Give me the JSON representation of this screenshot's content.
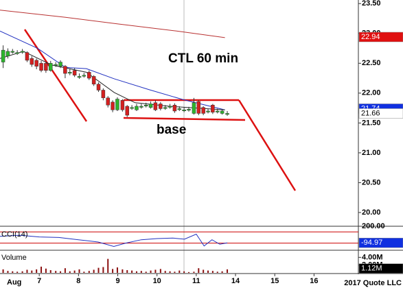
{
  "chart_data": [
    {
      "type": "candlestick",
      "title": "CTL 60 min",
      "annotation": "base",
      "xlim": [
        0,
        9.13
      ],
      "ylim": [
        19.77,
        23.56
      ],
      "yticks": [
        {
          "value": 23.5,
          "label": "23.50"
        },
        {
          "value": 23,
          "label": "23.00"
        },
        {
          "value": 22.5,
          "label": "22.50"
        },
        {
          "value": 22,
          "label": "22.00"
        },
        {
          "value": 21.5,
          "label": "21.50"
        },
        {
          "value": 21,
          "label": "21.00"
        },
        {
          "value": 20.5,
          "label": "20.50"
        },
        {
          "value": 20,
          "label": "20.00"
        }
      ],
      "up_color": "#2db52d",
      "down_color": "#d42020",
      "x": [
        0.08,
        0.2,
        0.32,
        0.44,
        0.57,
        0.69,
        0.81,
        0.93,
        1.05,
        1.17,
        1.29,
        1.42,
        1.54,
        1.66,
        1.78,
        1.9,
        2.02,
        2.14,
        2.27,
        2.39,
        2.51,
        2.63,
        2.75,
        2.87,
        2.99,
        3.12,
        3.24,
        3.36,
        3.48,
        3.6,
        3.72,
        3.84,
        3.96,
        4.09,
        4.21,
        4.33,
        4.45,
        4.57,
        4.69,
        4.81,
        4.94,
        5.06,
        5.18,
        5.3,
        5.42,
        5.54,
        5.66,
        5.79
      ],
      "open": [
        22.52,
        22.62,
        22.69,
        22.68,
        22.7,
        22.68,
        22.58,
        22.55,
        22.5,
        22.5,
        22.38,
        22.48,
        22.45,
        22.45,
        22.35,
        22.38,
        22.28,
        22.3,
        22.35,
        22.28,
        22.15,
        22.05,
        21.92,
        21.85,
        21.72,
        21.88,
        21.78,
        21.76,
        21.72,
        21.78,
        21.8,
        21.76,
        21.84,
        21.82,
        21.76,
        21.78,
        21.8,
        21.74,
        21.72,
        21.73,
        21.66,
        21.86,
        21.76,
        21.7,
        21.8,
        21.7,
        21.66,
        21.66
      ],
      "high": [
        22.8,
        22.75,
        22.74,
        22.72,
        22.74,
        22.7,
        22.62,
        22.58,
        22.54,
        22.52,
        22.54,
        22.52,
        22.55,
        22.47,
        22.4,
        22.42,
        22.33,
        22.34,
        22.38,
        22.3,
        22.18,
        22.08,
        21.95,
        21.88,
        21.93,
        21.9,
        21.8,
        21.8,
        21.82,
        21.82,
        21.84,
        21.86,
        21.88,
        21.85,
        21.8,
        21.82,
        21.83,
        21.78,
        21.76,
        21.77,
        21.92,
        21.88,
        21.78,
        21.74,
        21.82,
        21.74,
        21.73,
        21.7
      ],
      "low": [
        22.42,
        22.58,
        22.66,
        22.64,
        22.66,
        22.52,
        22.44,
        22.4,
        22.35,
        22.34,
        22.36,
        22.44,
        22.42,
        22.25,
        22.3,
        22.27,
        22.24,
        22.26,
        22.22,
        22.12,
        22.02,
        21.88,
        21.76,
        21.68,
        21.7,
        21.69,
        21.6,
        21.72,
        21.7,
        21.74,
        21.76,
        21.74,
        21.7,
        21.71,
        21.72,
        21.74,
        21.67,
        21.7,
        21.68,
        21.69,
        21.64,
        21.63,
        21.63,
        21.66,
        21.65,
        21.66,
        21.64,
        21.62
      ],
      "close": [
        22.72,
        22.7,
        22.7,
        22.68,
        22.7,
        22.55,
        22.48,
        22.45,
        22.38,
        22.38,
        22.5,
        22.48,
        22.52,
        22.33,
        22.35,
        22.3,
        22.28,
        22.3,
        22.25,
        22.15,
        22.05,
        21.92,
        21.8,
        21.72,
        21.9,
        21.72,
        21.63,
        21.76,
        21.78,
        21.78,
        21.8,
        21.82,
        21.72,
        21.74,
        21.76,
        21.78,
        21.7,
        21.74,
        21.72,
        21.73,
        21.84,
        21.66,
        21.66,
        21.7,
        21.68,
        21.7,
        21.7,
        21.66
      ],
      "lines": [
        {
          "color": "#b83030",
          "x": [
            0,
            1.67,
            3.0,
            4.5,
            5.73
          ],
          "values": [
            23.39,
            23.27,
            23.16,
            23.04,
            22.93
          ]
        },
        {
          "color": "#2030c0",
          "x": [
            0,
            0.96,
            1.67,
            2.2,
            2.91,
            3.79,
            4.67,
            5.73
          ],
          "values": [
            23.04,
            22.75,
            22.43,
            22.41,
            22.24,
            22.06,
            21.89,
            21.72
          ]
        },
        {
          "color": "#222222",
          "x": [
            0,
            0.6,
            1.32,
            2.2,
            2.91,
            3.44,
            4.32,
            5.73
          ],
          "values": [
            22.58,
            22.7,
            22.47,
            22.35,
            22.01,
            21.84,
            21.78,
            21.72
          ]
        }
      ],
      "markers": [
        {
          "value": 22.94,
          "color": "#e01010",
          "text_color": "#ffffff"
        },
        {
          "value": 21.74,
          "color": "#1030e0",
          "text_color": "#ffffff"
        },
        {
          "value": 21.66,
          "color": "#ffffff",
          "text_color": "#000000"
        }
      ]
    },
    {
      "type": "line",
      "label": "CCI(14)",
      "color": "#2030c0",
      "ylim": [
        -190,
        200
      ],
      "yticks": [
        {
          "value": 200,
          "label": "200.00"
        }
      ],
      "levels": [
        100,
        -100
      ],
      "level_color": "#cc0000",
      "x": [
        0,
        0.5,
        1.0,
        1.5,
        2.0,
        2.5,
        2.9,
        3.2,
        3.6,
        4.0,
        4.4,
        4.7,
        5.0,
        5.2,
        5.4,
        5.6,
        5.79
      ],
      "values": [
        20,
        40,
        10,
        0,
        -40,
        -80,
        -160,
        -100,
        -40,
        -20,
        -10,
        -30,
        60,
        -150,
        -40,
        -120,
        -94.97
      ],
      "marker": {
        "value": -94.97,
        "color": "#1030e0",
        "text_color": "#ffffff"
      }
    },
    {
      "type": "bar",
      "label": "Volume",
      "color": "#8b1010",
      "ylim": [
        0,
        5.3
      ],
      "yticks": [
        {
          "value": 4,
          "label": "4.00M"
        },
        {
          "value": 2,
          "label": "2.00M"
        }
      ],
      "values": [
        0.9,
        0.5,
        0.4,
        0.3,
        0.4,
        0.8,
        0.6,
        0.9,
        1.6,
        1.1,
        0.7,
        0.5,
        0.4,
        1.2,
        0.4,
        0.6,
        0.9,
        0.3,
        0.5,
        0.8,
        1.3,
        1.5,
        3.6,
        1.0,
        1.4,
        0.9,
        0.7,
        0.6,
        0.4,
        0.5,
        0.3,
        0.6,
        0.8,
        1.0,
        0.5,
        0.4,
        0.3,
        0.6,
        0.4,
        0.2,
        0.3,
        1.2,
        0.8,
        0.6,
        0.5,
        0.3,
        0.4,
        0.9
      ],
      "marker": {
        "value": 1.12,
        "label": "1.12M",
        "color": "#000000",
        "text_color": "#ffffff"
      },
      "xticks": [
        {
          "value": 1,
          "label": "7"
        },
        {
          "value": 2,
          "label": "8"
        },
        {
          "value": 3,
          "label": "9"
        },
        {
          "value": 4,
          "label": "10"
        },
        {
          "value": 5,
          "label": "11"
        },
        {
          "value": 6,
          "label": "14"
        },
        {
          "value": 7,
          "label": "15"
        },
        {
          "value": 8,
          "label": "16"
        }
      ],
      "month_label": "Aug",
      "watermark": "2017 Quote LLC"
    }
  ]
}
